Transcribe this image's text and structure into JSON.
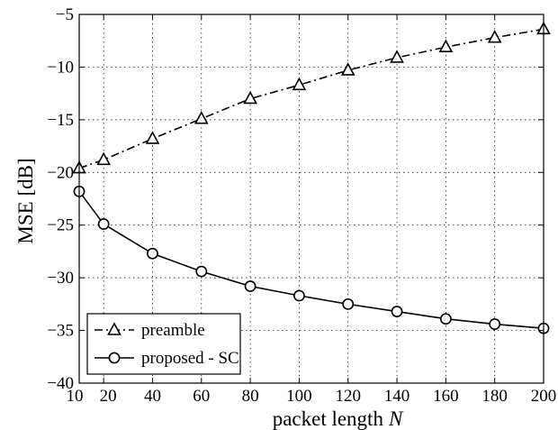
{
  "chart_data": {
    "type": "line",
    "xlabel": "packet length",
    "xlabel_var": "N",
    "ylabel": "MSE [dB]",
    "xlim": [
      10,
      200
    ],
    "ylim": [
      -40,
      -5
    ],
    "xticks": [
      10,
      20,
      40,
      60,
      80,
      100,
      120,
      140,
      160,
      180,
      200
    ],
    "yticks": [
      -40,
      -35,
      -30,
      -25,
      -20,
      -15,
      -10,
      -5
    ],
    "grid": true,
    "legend_position": "bottom-left",
    "x": [
      10,
      20,
      40,
      60,
      80,
      100,
      120,
      140,
      160,
      180,
      200
    ],
    "series": [
      {
        "name": "preamble",
        "line_style": "dash-dot",
        "marker": "triangle",
        "values": [
          -19.6,
          -18.8,
          -16.8,
          -14.9,
          -13.0,
          -11.7,
          -10.3,
          -9.1,
          -8.1,
          -7.2,
          -6.4
        ]
      },
      {
        "name": "proposed - SC",
        "line_style": "solid",
        "marker": "circle",
        "values": [
          -21.8,
          -24.9,
          -27.7,
          -29.4,
          -30.8,
          -31.7,
          -32.5,
          -33.2,
          -33.9,
          -34.4,
          -34.8
        ]
      }
    ]
  }
}
